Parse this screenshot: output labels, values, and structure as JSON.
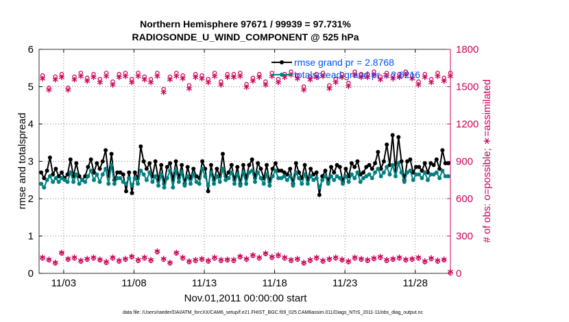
{
  "chart_data": {
    "type": "line",
    "title_line1": "Northern Hemisphere 97671 / 99939 = 97.731%",
    "title_line2": "RADIOSONDE_U_WIND_COMPONENT @ 525 hPa",
    "xlabel": "Nov.01,2011 00:00:00 start",
    "ylabel_left": "rmse and totalspread",
    "ylabel_right": "# of obs: o=possible; ∗=assimilated",
    "footer": "data file: /Users/raeder/DAI/ATM_forcXX/CAM6_setup/f.e21.FHIST_BGC.f09_025.CAM6assim.011/Diags_NTrS_2011-11/obs_diag_output.nc",
    "xlim": [
      1.25,
      30.5
    ],
    "ylim_left": [
      0,
      6
    ],
    "ylim_right": [
      0,
      1800
    ],
    "x_ticks": [
      3,
      8,
      13,
      18,
      23,
      28
    ],
    "x_tick_labels": [
      "11/03",
      "11/08",
      "11/13",
      "11/18",
      "11/23",
      "11/28"
    ],
    "y_left_ticks": [
      "0",
      "1",
      "2",
      "3",
      "4",
      "5",
      "6"
    ],
    "y_right_ticks": [
      "0",
      "300",
      "600",
      "900",
      "1200",
      "1500",
      "1800"
    ],
    "legend": [
      "rmse grand pr = 2.8768",
      "totalspread grand pr = 2.6216"
    ],
    "colors": {
      "rmse": "#000000",
      "spread": "#008080",
      "obs": "#cc0055"
    },
    "series": [
      {
        "name": "rmse",
        "axis": "left",
        "values": [
          2.7,
          2.55,
          2.75,
          3.1,
          2.65,
          2.8,
          2.6,
          2.7,
          2.55,
          2.65,
          3.05,
          2.6,
          2.95,
          2.6,
          2.5,
          2.6,
          2.85,
          3.05,
          2.7,
          2.95,
          2.8,
          3.0,
          3.3,
          2.6,
          3.2,
          2.5,
          2.7,
          2.7,
          2.65,
          2.2,
          2.7,
          2.15,
          2.7,
          2.55,
          3.4,
          3.0,
          2.8,
          2.95,
          2.6,
          3.0,
          2.5,
          2.9,
          2.4,
          2.85,
          2.95,
          2.5,
          3.0,
          2.55,
          2.9,
          2.4,
          2.85,
          2.55,
          2.8,
          2.6,
          2.55,
          3.0,
          2.8,
          2.2,
          2.9,
          2.5,
          2.8,
          2.6,
          3.2,
          2.6,
          2.7,
          2.9,
          2.5,
          2.85,
          2.4,
          2.9,
          2.55,
          2.9,
          3.05,
          2.55,
          2.95,
          2.8,
          2.55,
          2.9,
          2.45,
          2.8,
          2.95,
          2.75,
          2.75,
          2.7,
          2.65,
          2.8,
          2.4,
          2.95,
          2.7,
          2.55,
          2.9,
          2.5,
          2.8,
          2.65,
          2.7,
          2.1,
          2.6,
          2.75,
          2.45,
          2.85,
          2.7,
          2.9,
          2.85,
          2.45,
          2.8,
          2.6,
          2.95,
          2.85,
          3.0,
          2.65,
          2.7,
          2.85,
          2.9,
          2.8,
          2.95,
          3.25,
          2.8,
          3.0,
          3.45,
          2.9,
          3.7,
          2.75,
          3.65,
          3.0,
          2.5,
          3.0,
          3.05,
          2.7,
          2.85,
          2.85,
          2.75,
          2.95,
          2.7,
          2.95,
          2.9,
          3.05,
          2.8,
          3.3,
          2.95,
          2.95
        ]
      },
      {
        "name": "totalspread",
        "axis": "left",
        "values": [
          2.4,
          2.3,
          2.5,
          2.6,
          2.45,
          2.55,
          2.45,
          2.55,
          2.5,
          2.45,
          2.7,
          2.45,
          2.65,
          2.4,
          2.5,
          2.45,
          2.6,
          2.75,
          2.5,
          2.65,
          2.45,
          2.65,
          2.8,
          2.4,
          2.9,
          2.4,
          2.55,
          2.55,
          2.45,
          2.4,
          2.55,
          2.35,
          2.55,
          2.4,
          2.75,
          2.65,
          2.5,
          2.7,
          2.45,
          2.6,
          2.35,
          2.65,
          2.3,
          2.55,
          2.75,
          2.3,
          2.75,
          2.45,
          2.7,
          2.35,
          2.6,
          2.4,
          2.65,
          2.45,
          2.4,
          2.8,
          2.6,
          2.35,
          2.7,
          2.4,
          2.6,
          2.45,
          2.8,
          2.5,
          2.55,
          2.7,
          2.4,
          2.65,
          2.35,
          2.7,
          2.4,
          2.7,
          2.75,
          2.45,
          2.7,
          2.55,
          2.4,
          2.65,
          2.35,
          2.6,
          2.75,
          2.55,
          2.55,
          2.6,
          2.5,
          2.6,
          2.35,
          2.7,
          2.55,
          2.4,
          2.65,
          2.4,
          2.6,
          2.5,
          2.55,
          2.3,
          2.5,
          2.6,
          2.4,
          2.6,
          2.5,
          2.6,
          2.55,
          2.4,
          2.6,
          2.45,
          2.65,
          2.55,
          2.7,
          2.45,
          2.55,
          2.6,
          2.65,
          2.55,
          2.7,
          2.8,
          2.6,
          2.7,
          2.85,
          2.65,
          2.9,
          2.6,
          2.95,
          2.7,
          2.45,
          2.7,
          2.75,
          2.5,
          2.65,
          2.65,
          2.55,
          2.7,
          2.5,
          2.65,
          2.65,
          2.7,
          2.55,
          2.75,
          2.6,
          2.6
        ]
      },
      {
        "name": "obs_possible_high",
        "axis": "right",
        "marker": "o",
        "values": [
          1590,
          1490,
          1580,
          1600,
          1490,
          1580,
          1610,
          1570,
          1600,
          1560,
          1610,
          1540,
          1600,
          1610,
          1560,
          1610,
          1580,
          1560,
          1610,
          1480,
          1580,
          1610,
          1590,
          1510,
          1600,
          1590,
          1560,
          1610,
          1540,
          1600,
          1600,
          1610,
          1520,
          1570,
          1600,
          1540,
          1610,
          1560,
          1600,
          1620,
          1590,
          1500,
          1580,
          1600,
          1610,
          1510,
          1560,
          1600,
          1530,
          1620,
          1600,
          1600,
          1620,
          1580,
          1610,
          1590,
          1600,
          1620,
          1590,
          1540,
          1600,
          1560,
          1610,
          1570,
          1610
        ]
      },
      {
        "name": "obs_assimilated_high",
        "axis": "right",
        "marker": "*",
        "values": [
          1550,
          1460,
          1540,
          1560,
          1460,
          1540,
          1570,
          1530,
          1560,
          1520,
          1570,
          1500,
          1560,
          1570,
          1520,
          1570,
          1540,
          1520,
          1570,
          1440,
          1540,
          1570,
          1550,
          1470,
          1560,
          1550,
          1520,
          1570,
          1500,
          1560,
          1560,
          1570,
          1480,
          1530,
          1560,
          1500,
          1570,
          1520,
          1560,
          1580,
          1550,
          1460,
          1540,
          1560,
          1570,
          1470,
          1520,
          1560,
          1490,
          1580,
          1560,
          1560,
          1580,
          1540,
          1570,
          1550,
          1560,
          1580,
          1550,
          1500,
          1560,
          1520,
          1570,
          1530,
          1570
        ]
      },
      {
        "name": "obs_possible_low",
        "axis": "right",
        "marker": "o",
        "values": [
          120,
          105,
          80,
          160,
          110,
          120,
          95,
          110,
          120,
          105,
          85,
          120,
          95,
          110,
          130,
          100,
          120,
          100,
          170,
          110,
          80,
          160,
          120,
          90,
          100,
          110,
          95,
          120,
          100,
          105,
          100,
          130,
          110,
          140,
          120,
          155,
          125,
          140,
          120,
          100,
          110,
          80,
          100,
          120,
          95,
          110,
          120,
          105,
          90,
          120,
          110,
          100,
          115,
          125,
          100,
          110,
          120,
          105,
          110,
          120,
          90,
          115,
          95,
          105,
          0
        ]
      },
      {
        "name": "obs_assimilated_low",
        "axis": "right",
        "marker": "*",
        "values": [
          115,
          100,
          75,
          155,
          105,
          115,
          90,
          105,
          115,
          100,
          80,
          115,
          90,
          105,
          125,
          95,
          115,
          95,
          165,
          105,
          75,
          155,
          115,
          85,
          95,
          105,
          90,
          115,
          95,
          100,
          95,
          125,
          105,
          135,
          115,
          150,
          120,
          135,
          115,
          95,
          105,
          75,
          95,
          115,
          90,
          105,
          115,
          100,
          85,
          115,
          105,
          95,
          110,
          120,
          95,
          105,
          115,
          100,
          105,
          115,
          85,
          110,
          90,
          100,
          0
        ]
      }
    ]
  }
}
